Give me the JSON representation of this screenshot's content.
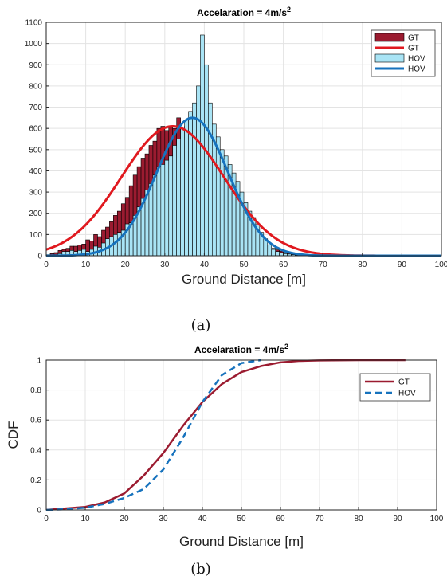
{
  "figure": {
    "caption_a": "(a)",
    "caption_b": "(b)"
  },
  "chart_data": [
    {
      "type": "bar",
      "title": "Accelaration = 4m/s",
      "title_superscript": "2",
      "xlabel": "Ground Distance [m]",
      "ylabel": "",
      "xlim": [
        0,
        100
      ],
      "ylim": [
        0,
        1100
      ],
      "xticks": [
        0,
        10,
        20,
        30,
        40,
        50,
        60,
        70,
        80,
        90,
        100
      ],
      "xtick_labels": [
        "0",
        "10",
        "20",
        "30",
        "40",
        "50",
        "60",
        "70",
        "80",
        "90",
        "100"
      ],
      "yticks": [
        0,
        100,
        200,
        300,
        400,
        500,
        600,
        700,
        800,
        900,
        1000,
        1100
      ],
      "grid": true,
      "legend": {
        "placement": "top-right",
        "entries": [
          "GT",
          "GT",
          "HOV",
          "HOV"
        ]
      },
      "bin_width": 1,
      "series": [
        {
          "name": "GT",
          "kind": "histogram",
          "color": "#9b1b30",
          "bin_start": [
            0,
            1,
            2,
            3,
            4,
            5,
            6,
            7,
            8,
            9,
            10,
            11,
            12,
            13,
            14,
            15,
            16,
            17,
            18,
            19,
            20,
            21,
            22,
            23,
            24,
            25,
            26,
            27,
            28,
            29,
            30,
            31,
            32,
            33,
            34,
            35,
            36,
            37,
            38,
            39,
            40,
            41,
            42,
            43,
            44,
            45,
            46,
            47,
            48,
            49,
            50,
            51,
            52,
            53,
            54,
            55,
            56,
            57,
            58,
            59,
            60,
            61,
            62,
            63,
            64,
            65,
            66,
            67,
            68,
            69,
            70,
            71,
            72,
            73,
            74,
            75,
            76,
            77,
            78,
            79
          ],
          "values": [
            5,
            10,
            15,
            25,
            30,
            35,
            45,
            45,
            50,
            55,
            75,
            70,
            100,
            90,
            120,
            135,
            160,
            190,
            210,
            245,
            275,
            330,
            380,
            420,
            460,
            480,
            520,
            540,
            600,
            610,
            590,
            610,
            600,
            650,
            560,
            610,
            560,
            520,
            540,
            480,
            440,
            420,
            380,
            360,
            330,
            300,
            270,
            240,
            210,
            180,
            160,
            130,
            110,
            90,
            75,
            60,
            45,
            35,
            28,
            22,
            15,
            12,
            8,
            6,
            5,
            4,
            3,
            3,
            2,
            2,
            2,
            2,
            1,
            1,
            1,
            1,
            1,
            1,
            0,
            0
          ]
        },
        {
          "name": "GT",
          "kind": "fit",
          "color": "#e0191f",
          "mean": 32,
          "sd": 13,
          "peak": 610
        },
        {
          "name": "HOV",
          "kind": "histogram",
          "color": "#a9e4f5",
          "bin_start": [
            0,
            1,
            2,
            3,
            4,
            5,
            6,
            7,
            8,
            9,
            10,
            11,
            12,
            13,
            14,
            15,
            16,
            17,
            18,
            19,
            20,
            21,
            22,
            23,
            24,
            25,
            26,
            27,
            28,
            29,
            30,
            31,
            32,
            33,
            34,
            35,
            36,
            37,
            38,
            39,
            40,
            41,
            42,
            43,
            44,
            45,
            46,
            47,
            48,
            49,
            50,
            51,
            52,
            53,
            54,
            55,
            56,
            57,
            58,
            59,
            60,
            61,
            62,
            63,
            64,
            65,
            66,
            67,
            68,
            69,
            70,
            71,
            72,
            73,
            74,
            75
          ],
          "values": [
            0,
            0,
            5,
            10,
            20,
            20,
            25,
            20,
            25,
            30,
            20,
            30,
            45,
            40,
            60,
            80,
            90,
            100,
            110,
            120,
            150,
            155,
            190,
            230,
            270,
            310,
            340,
            380,
            420,
            430,
            450,
            470,
            520,
            550,
            600,
            640,
            680,
            720,
            800,
            1040,
            900,
            720,
            620,
            560,
            500,
            470,
            430,
            390,
            350,
            300,
            250,
            210,
            180,
            150,
            110,
            80,
            50,
            30,
            20,
            15,
            10,
            8,
            5,
            3,
            2,
            1,
            1,
            1,
            1,
            0,
            0,
            0,
            0,
            0,
            0,
            0
          ]
        },
        {
          "name": "HOV",
          "kind": "fit",
          "color": "#1672bd",
          "mean": 37,
          "sd": 9,
          "peak": 650
        }
      ]
    },
    {
      "type": "line",
      "title": "Accelaration = 4m/s",
      "title_superscript": "2",
      "xlabel": "Ground Distance [m]",
      "ylabel": "CDF",
      "xlim": [
        0,
        100
      ],
      "ylim": [
        0,
        1
      ],
      "xticks": [
        0,
        10,
        20,
        30,
        40,
        50,
        60,
        70,
        80,
        90,
        100
      ],
      "yticks": [
        0,
        0.2,
        0.4,
        0.6,
        0.8,
        1
      ],
      "ytick_labels": [
        "0",
        "0.2",
        "0.4",
        "0.6",
        "0.8",
        "1"
      ],
      "grid": true,
      "legend": {
        "placement": "top-right",
        "entries": [
          "GT",
          "HOV"
        ]
      },
      "series": [
        {
          "name": "GT",
          "style": "solid",
          "color": "#9b1b30",
          "x": [
            0,
            5,
            10,
            15,
            20,
            25,
            30,
            35,
            40,
            45,
            50,
            55,
            60,
            65,
            70,
            80,
            92
          ],
          "y": [
            0,
            0.01,
            0.02,
            0.05,
            0.11,
            0.23,
            0.38,
            0.56,
            0.72,
            0.84,
            0.92,
            0.96,
            0.985,
            0.995,
            0.998,
            1.0,
            1.0
          ]
        },
        {
          "name": "HOV",
          "style": "dashed",
          "color": "#1672bd",
          "x": [
            0,
            5,
            10,
            15,
            20,
            25,
            30,
            35,
            40,
            45,
            50,
            55
          ],
          "y": [
            0,
            0.005,
            0.015,
            0.04,
            0.08,
            0.14,
            0.27,
            0.48,
            0.72,
            0.9,
            0.98,
            1.0
          ]
        }
      ]
    }
  ]
}
